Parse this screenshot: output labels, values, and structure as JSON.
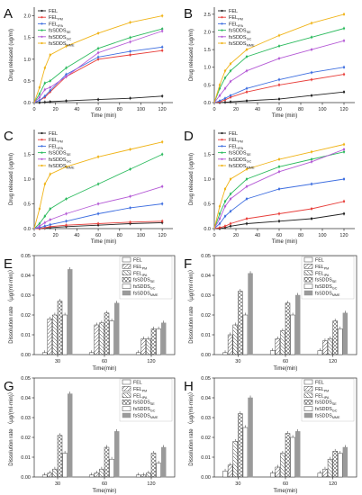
{
  "colors": {
    "FEL": "#222222",
    "FEL_PM": "#e8403c",
    "FEL_IPA": "#3f6fe0",
    "fsSDDS_SE": "#2dbb5f",
    "fsSDDS_GC": "#b55bd6",
    "fsSDDS_MME": "#f0b419"
  },
  "chart_data": [
    {
      "panel": "A",
      "type": "line",
      "ylabel": "Drug released (ug/ml)",
      "xlabel": "Time (min)",
      "xlim": [
        0,
        130
      ],
      "ylim": [
        0,
        2.2
      ],
      "xticks": [
        "0",
        "20",
        "40",
        "60",
        "80",
        "100",
        "120"
      ],
      "yticks": [
        "0.0",
        "0.5",
        "1.0",
        "1.5",
        "2.0"
      ],
      "x": [
        5,
        10,
        15,
        30,
        60,
        90,
        120
      ],
      "legend": [
        "FEL",
        "FEL_PM",
        "FEL_IPA",
        "fsSDDS_SE",
        "fsSDDS_GC",
        "fsSDDS_MME"
      ],
      "series": [
        {
          "name": "FEL",
          "values": [
            0.0,
            0.01,
            0.02,
            0.04,
            0.07,
            0.1,
            0.15
          ]
        },
        {
          "name": "FEL_PM",
          "values": [
            0.05,
            0.12,
            0.25,
            0.6,
            1.0,
            1.1,
            1.2
          ]
        },
        {
          "name": "FEL_IPA",
          "values": [
            0.05,
            0.15,
            0.28,
            0.65,
            1.05,
            1.18,
            1.28
          ]
        },
        {
          "name": "fsSDDS_SE",
          "values": [
            0.2,
            0.45,
            0.5,
            0.8,
            1.25,
            1.5,
            1.7
          ]
        },
        {
          "name": "fsSDDS_GC",
          "values": [
            0.12,
            0.3,
            0.35,
            0.6,
            1.15,
            1.4,
            1.65
          ]
        },
        {
          "name": "fsSDDS_MME",
          "values": [
            0.35,
            0.8,
            1.1,
            1.3,
            1.6,
            1.85,
            2.0
          ]
        }
      ]
    },
    {
      "panel": "B",
      "type": "line",
      "ylabel": "Drug released (ug/ml)",
      "xlabel": "Time (min)",
      "xlim": [
        0,
        130
      ],
      "ylim": [
        0,
        2.7
      ],
      "xticks": [
        "0",
        "20",
        "40",
        "60",
        "80",
        "100",
        "120"
      ],
      "yticks": [
        "0.0",
        "0.5",
        "1.0",
        "1.5",
        "2.0",
        "2.5"
      ],
      "x": [
        5,
        10,
        15,
        30,
        60,
        90,
        120
      ],
      "legend": [
        "FEL",
        "FEL_PM",
        "FEL_IPA",
        "fsSDDS_SE",
        "fsSDDS_GC",
        "fsSDDS_MME"
      ],
      "series": [
        {
          "name": "FEL",
          "values": [
            0.0,
            0.01,
            0.02,
            0.05,
            0.1,
            0.2,
            0.3
          ]
        },
        {
          "name": "FEL_PM",
          "values": [
            0.02,
            0.08,
            0.15,
            0.3,
            0.5,
            0.65,
            0.8
          ]
        },
        {
          "name": "FEL_IPA",
          "values": [
            0.05,
            0.12,
            0.2,
            0.4,
            0.65,
            0.85,
            1.0
          ]
        },
        {
          "name": "fsSDDS_SE",
          "values": [
            0.4,
            0.7,
            0.9,
            1.3,
            1.6,
            1.85,
            2.1
          ]
        },
        {
          "name": "fsSDDS_GC",
          "values": [
            0.2,
            0.4,
            0.6,
            0.9,
            1.25,
            1.5,
            1.75
          ]
        },
        {
          "name": "fsSDDS_MME",
          "values": [
            0.5,
            0.9,
            1.1,
            1.5,
            1.9,
            2.25,
            2.5
          ]
        }
      ]
    },
    {
      "panel": "C",
      "type": "line",
      "ylabel": "Drug released (ug/ml)",
      "xlabel": "Time (min)",
      "xlim": [
        0,
        130
      ],
      "ylim": [
        0,
        2.0
      ],
      "xticks": [
        "0",
        "20",
        "40",
        "60",
        "80",
        "100",
        "120"
      ],
      "yticks": [
        "0.0",
        "0.5",
        "1.0",
        "1.5"
      ],
      "x": [
        5,
        10,
        15,
        30,
        60,
        90,
        120
      ],
      "legend": [
        "FEL",
        "FEL_PM",
        "FEL_IPA",
        "fsSDDS_SE",
        "fsSDDS_GC",
        "fsSDDS_MME"
      ],
      "series": [
        {
          "name": "FEL",
          "values": [
            0.0,
            0.01,
            0.02,
            0.04,
            0.07,
            0.1,
            0.12
          ]
        },
        {
          "name": "FEL_PM",
          "values": [
            0.0,
            0.02,
            0.04,
            0.07,
            0.1,
            0.13,
            0.15
          ]
        },
        {
          "name": "FEL_IPA",
          "values": [
            0.02,
            0.05,
            0.08,
            0.15,
            0.3,
            0.42,
            0.5
          ]
        },
        {
          "name": "fsSDDS_SE",
          "values": [
            0.1,
            0.25,
            0.4,
            0.6,
            0.9,
            1.2,
            1.5
          ]
        },
        {
          "name": "fsSDDS_GC",
          "values": [
            0.05,
            0.12,
            0.18,
            0.3,
            0.5,
            0.65,
            0.85
          ]
        },
        {
          "name": "fsSDDS_MME",
          "values": [
            0.4,
            0.9,
            1.1,
            1.25,
            1.45,
            1.6,
            1.75
          ]
        }
      ]
    },
    {
      "panel": "D",
      "type": "line",
      "ylabel": "Drug released (ug/ml)",
      "xlabel": "Time (min)",
      "xlim": [
        0,
        130
      ],
      "ylim": [
        0,
        2.0
      ],
      "xticks": [
        "0",
        "20",
        "40",
        "60",
        "80",
        "100",
        "120"
      ],
      "yticks": [
        "0.0",
        "0.5",
        "1.0",
        "1.5"
      ],
      "x": [
        5,
        10,
        15,
        30,
        60,
        90,
        120
      ],
      "legend": [
        "FEL",
        "FEL_PM",
        "FEL_IPA",
        "fsSDDS_SE",
        "fsSDDS_GC",
        "fsSDDS_MME"
      ],
      "series": [
        {
          "name": "FEL",
          "values": [
            0.0,
            0.02,
            0.05,
            0.1,
            0.15,
            0.2,
            0.3
          ]
        },
        {
          "name": "FEL_PM",
          "values": [
            0.02,
            0.05,
            0.1,
            0.2,
            0.3,
            0.4,
            0.55
          ]
        },
        {
          "name": "FEL_IPA",
          "values": [
            0.1,
            0.25,
            0.35,
            0.6,
            0.8,
            0.9,
            1.0
          ]
        },
        {
          "name": "fsSDDS_SE",
          "values": [
            0.3,
            0.55,
            0.7,
            1.0,
            1.25,
            1.4,
            1.55
          ]
        },
        {
          "name": "fsSDDS_GC",
          "values": [
            0.2,
            0.45,
            0.6,
            0.85,
            1.15,
            1.35,
            1.6
          ]
        },
        {
          "name": "fsSDDS_MME",
          "values": [
            0.45,
            0.8,
            1.0,
            1.2,
            1.4,
            1.55,
            1.7
          ]
        }
      ]
    },
    {
      "panel": "E",
      "type": "bar",
      "ylabel": "Dissolution rate （μg/(ml·min)）",
      "xlabel": "Time(min)",
      "categories": [
        "30",
        "60",
        "120"
      ],
      "ylim": [
        0,
        0.05
      ],
      "yticks": [
        "0.00",
        "0.01",
        "0.02",
        "0.03",
        "0.04",
        "0.05"
      ],
      "legend": [
        "FEL",
        "FEL_PM",
        "FEL_IPA",
        "fsSDDS_SE",
        "fsSDDS_GC",
        "fsSDDS_MME"
      ],
      "series": [
        {
          "name": "FEL",
          "values": [
            0.001,
            0.001,
            0.001
          ]
        },
        {
          "name": "FEL_PM",
          "values": [
            0.018,
            0.015,
            0.008
          ]
        },
        {
          "name": "FEL_IPA",
          "values": [
            0.02,
            0.016,
            0.008
          ]
        },
        {
          "name": "fsSDDS_SE",
          "values": [
            0.027,
            0.021,
            0.013
          ]
        },
        {
          "name": "fsSDDS_GC",
          "values": [
            0.02,
            0.017,
            0.013
          ]
        },
        {
          "name": "fsSDDS_MME",
          "values": [
            0.043,
            0.026,
            0.016
          ]
        }
      ]
    },
    {
      "panel": "F",
      "type": "bar",
      "ylabel": "Dissolution rate （μg/(ml·min)）",
      "xlabel": "Time(min)",
      "categories": [
        "30",
        "60",
        "120"
      ],
      "ylim": [
        0,
        0.05
      ],
      "yticks": [
        "0.00",
        "0.01",
        "0.02",
        "0.03",
        "0.04",
        "0.05"
      ],
      "legend": [
        "FEL",
        "FEL_PM",
        "FEL_IPA",
        "fsSDDS_SE",
        "fsSDDS_GC",
        "fsSDDS_MME"
      ],
      "series": [
        {
          "name": "FEL",
          "values": [
            0.001,
            0.002,
            0.002
          ]
        },
        {
          "name": "FEL_PM",
          "values": [
            0.01,
            0.008,
            0.007
          ]
        },
        {
          "name": "FEL_IPA",
          "values": [
            0.015,
            0.012,
            0.008
          ]
        },
        {
          "name": "fsSDDS_SE",
          "values": [
            0.032,
            0.026,
            0.017
          ]
        },
        {
          "name": "fsSDDS_GC",
          "values": [
            0.02,
            0.02,
            0.013
          ]
        },
        {
          "name": "fsSDDS_MME",
          "values": [
            0.041,
            0.03,
            0.021
          ]
        }
      ]
    },
    {
      "panel": "G",
      "type": "bar",
      "ylabel": "Dissolution rate （μg/(ml·min)）",
      "xlabel": "Time(min)",
      "categories": [
        "30",
        "60",
        "120"
      ],
      "ylim": [
        0,
        0.05
      ],
      "yticks": [
        "0.00",
        "0.01",
        "0.02",
        "0.03",
        "0.04",
        "0.05"
      ],
      "legend": [
        "FEL",
        "FEL_PM",
        "FEL_IPA",
        "fsSDDS_SE",
        "fsSDDS_GC",
        "fsSDDS_MME"
      ],
      "series": [
        {
          "name": "FEL",
          "values": [
            0.001,
            0.001,
            0.001
          ]
        },
        {
          "name": "FEL_PM",
          "values": [
            0.002,
            0.002,
            0.001
          ]
        },
        {
          "name": "FEL_IPA",
          "values": [
            0.004,
            0.004,
            0.002
          ]
        },
        {
          "name": "fsSDDS_SE",
          "values": [
            0.021,
            0.015,
            0.012
          ]
        },
        {
          "name": "fsSDDS_GC",
          "values": [
            0.012,
            0.009,
            0.007
          ]
        },
        {
          "name": "fsSDDS_MME",
          "values": [
            0.042,
            0.023,
            0.015
          ]
        }
      ]
    },
    {
      "panel": "H",
      "type": "bar",
      "ylabel": "Dissolution rate （μg/(ml·min)）",
      "xlabel": "Time(min)",
      "categories": [
        "30",
        "60",
        "120"
      ],
      "ylim": [
        0,
        0.05
      ],
      "yticks": [
        "0.00",
        "0.01",
        "0.02",
        "0.03",
        "0.04",
        "0.05"
      ],
      "legend": [
        "FEL",
        "FEL_PM",
        "FEL_IPA",
        "fsSDDS_SE",
        "fsSDDS_GC",
        "fsSDDS_MME"
      ],
      "series": [
        {
          "name": "FEL",
          "values": [
            0.003,
            0.002,
            0.002
          ]
        },
        {
          "name": "FEL_PM",
          "values": [
            0.006,
            0.005,
            0.004
          ]
        },
        {
          "name": "FEL_IPA",
          "values": [
            0.018,
            0.012,
            0.009
          ]
        },
        {
          "name": "fsSDDS_SE",
          "values": [
            0.032,
            0.022,
            0.013
          ]
        },
        {
          "name": "fsSDDS_GC",
          "values": [
            0.025,
            0.02,
            0.012
          ]
        },
        {
          "name": "fsSDDS_MME",
          "values": [
            0.04,
            0.023,
            0.015
          ]
        }
      ]
    }
  ]
}
